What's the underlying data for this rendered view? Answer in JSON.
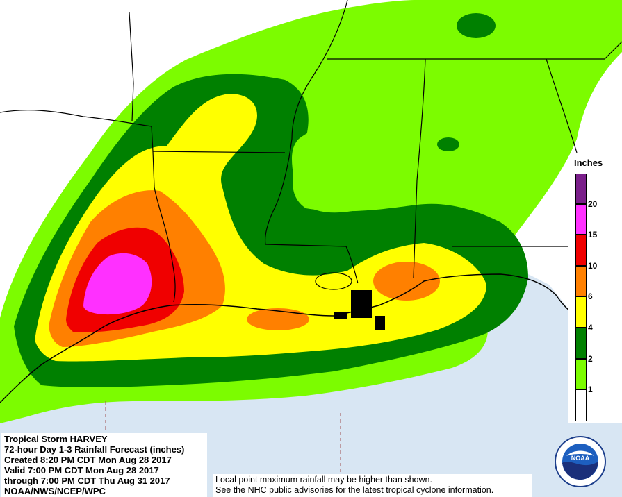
{
  "product": {
    "storm": "Tropical Storm HARVEY",
    "title": "72-hour Day 1-3 Rainfall Forecast (inches)",
    "created": "Created 8:20 PM CDT Mon Aug 28 2017",
    "valid": "Valid 7:00 PM CDT Mon Aug 28 2017",
    "through": "through 7:00 PM CDT Thu Aug 31 2017",
    "agency": "NOAA/NWS/NCEP/WPC"
  },
  "notes": {
    "line1": "Local point maximum rainfall may be higher than shown.",
    "line2": "See the NHC public advisories for the latest tropical cyclone information."
  },
  "legend": {
    "title": "Inches",
    "ticks": [
      "20",
      "15",
      "10",
      "6",
      "4",
      "2",
      "1"
    ],
    "colors": {
      "above_20": "#7a1f8a",
      "15_20": "#ff30ff",
      "10_15": "#f00000",
      "6_10": "#ff8000",
      "4_6": "#ffff00",
      "2_4": "#008000",
      "1_2": "#7cfc00",
      "below_1": "#ffffff"
    }
  },
  "map_colors": {
    "land": "#ffffff",
    "water": "#d8e6f3",
    "border": "#000000"
  },
  "logo_text": "NOAA"
}
